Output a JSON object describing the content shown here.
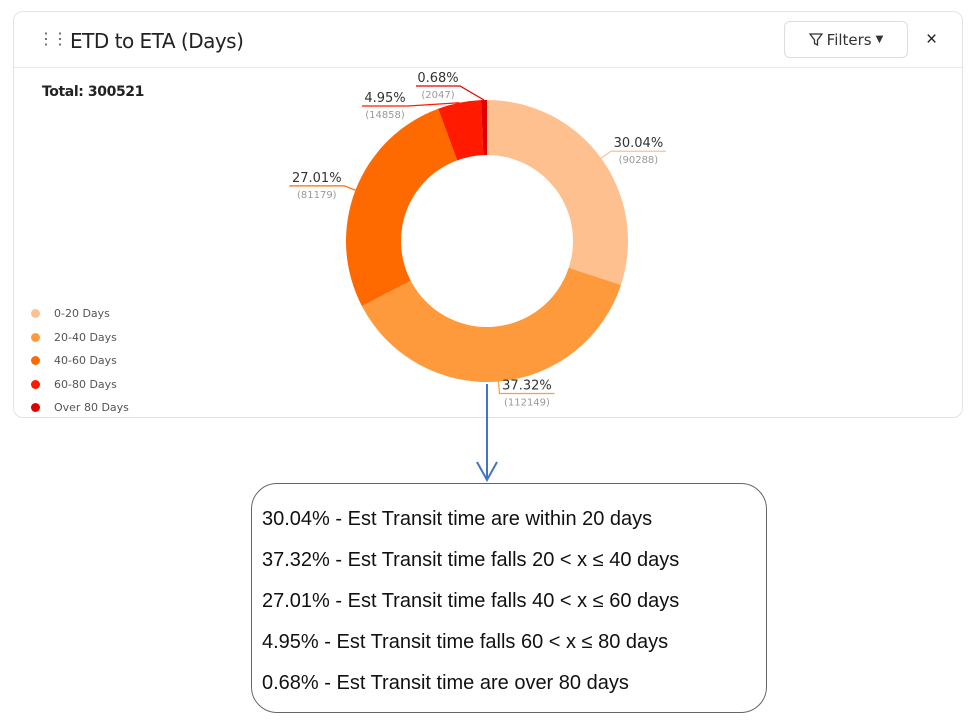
{
  "header": {
    "title": "ETD to ETA (Days)",
    "filters_label": "Filters",
    "close_label": "×",
    "drag_icon": "drag-handle-icon"
  },
  "total_label": "Total: 300521",
  "chart_data": {
    "type": "pie",
    "title": "ETD to ETA (Days)",
    "total": 300521,
    "categories": [
      "0-20 Days",
      "20-40 Days",
      "40-60 Days",
      "60-80 Days",
      "Over 80 Days"
    ],
    "values": [
      90288,
      112149,
      81179,
      14858,
      2047
    ],
    "percent_labels": [
      "30.04%",
      "37.32%",
      "27.01%",
      "4.95%",
      "0.68%"
    ],
    "count_labels": [
      "(90288)",
      "(112149)",
      "(81179)",
      "(14858)",
      "(2047)"
    ],
    "colors": [
      "#ffc08f",
      "#ff9a3c",
      "#ff6a00",
      "#ff1a00",
      "#e00000"
    ],
    "legend_position": "bottom-left",
    "donut": true
  },
  "notes": [
    "30.04% - Est Transit time are within 20 days",
    "37.32% - Est Transit time falls 20 < x ≤ 40 days",
    "27.01% - Est Transit time falls 40 < x ≤ 60 days",
    "4.95% - Est Transit time falls 60 < x ≤ 80 days",
    "0.68% - Est Transit time are over 80 days"
  ],
  "arrow_color": "#4472c4"
}
